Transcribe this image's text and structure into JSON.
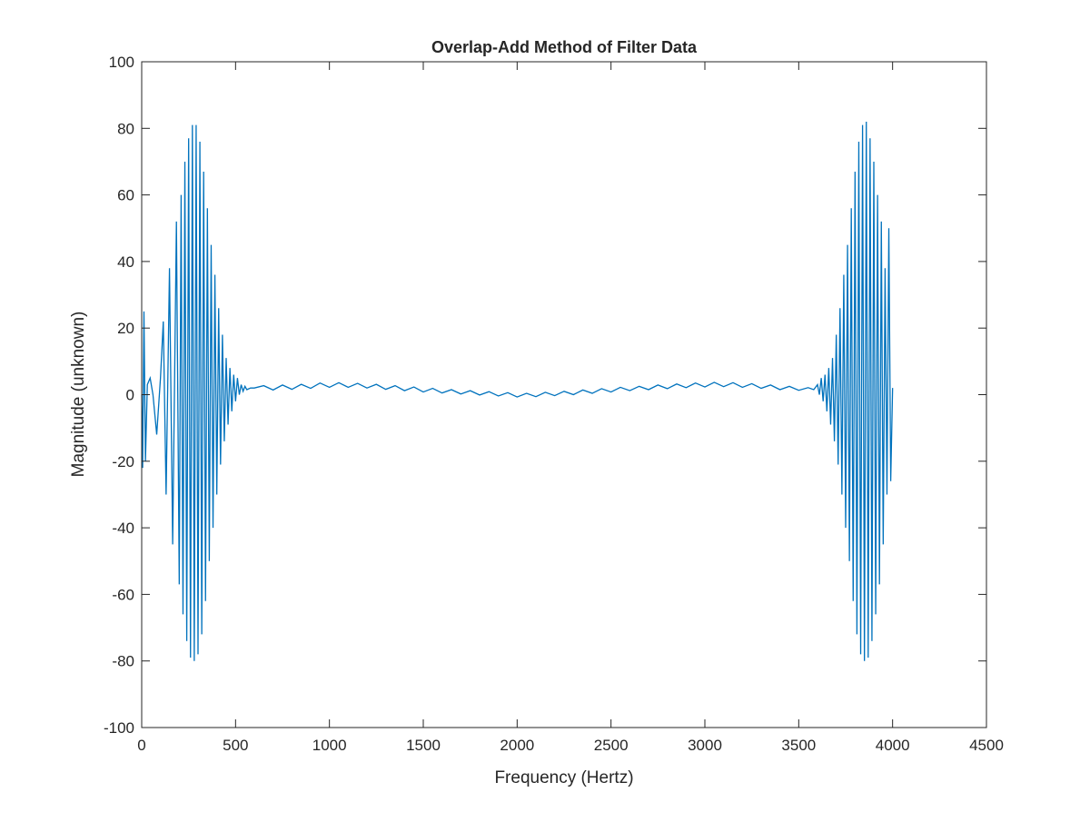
{
  "chart_data": {
    "type": "line",
    "title": "Overlap-Add Method of Filter Data",
    "x_label": "Frequency (Hertz)",
    "y_label": "Magnitude (unknown)",
    "xlim": [
      0,
      4500
    ],
    "xticks": [
      0,
      500,
      1000,
      1500,
      2000,
      2500,
      3000,
      3500,
      4000,
      4500
    ],
    "ylim": [
      -100,
      100
    ],
    "yticks": [
      -100,
      -80,
      -60,
      -40,
      -20,
      0,
      20,
      40,
      60,
      80,
      100
    ],
    "series": [
      {
        "color": "#0072bd",
        "x": [
          0,
          5,
          12,
          20,
          30,
          45,
          60,
          80,
          100,
          115,
          130,
          148,
          165,
          185,
          200,
          210,
          220,
          230,
          240,
          250,
          260,
          270,
          280,
          290,
          300,
          310,
          320,
          330,
          340,
          350,
          360,
          370,
          380,
          390,
          400,
          410,
          420,
          430,
          440,
          450,
          460,
          470,
          480,
          490,
          500,
          510,
          520,
          530,
          540,
          550,
          560,
          580,
          600,
          650,
          700,
          750,
          800,
          850,
          900,
          950,
          1000,
          1050,
          1100,
          1150,
          1200,
          1250,
          1300,
          1350,
          1400,
          1450,
          1500,
          1550,
          1600,
          1650,
          1700,
          1750,
          1800,
          1850,
          1900,
          1950,
          2000,
          2050,
          2100,
          2150,
          2200,
          2250,
          2300,
          2350,
          2400,
          2450,
          2500,
          2550,
          2600,
          2650,
          2700,
          2750,
          2800,
          2850,
          2900,
          2950,
          3000,
          3050,
          3100,
          3150,
          3200,
          3250,
          3300,
          3350,
          3400,
          3450,
          3500,
          3550,
          3580,
          3600,
          3610,
          3620,
          3630,
          3640,
          3650,
          3660,
          3670,
          3680,
          3690,
          3700,
          3710,
          3720,
          3730,
          3740,
          3750,
          3760,
          3770,
          3780,
          3790,
          3800,
          3810,
          3820,
          3830,
          3840,
          3850,
          3860,
          3870,
          3880,
          3890,
          3900,
          3910,
          3920,
          3930,
          3940,
          3950,
          3960,
          3970,
          3980,
          3990,
          4000
        ],
        "values": [
          0,
          -22,
          25,
          -20,
          3,
          5,
          0,
          -12,
          5,
          22,
          -30,
          38,
          -45,
          52,
          -57,
          60,
          -66,
          70,
          -74,
          77,
          -79,
          81,
          -80,
          81,
          -78,
          76,
          -72,
          67,
          -62,
          56,
          -50,
          45,
          -40,
          36,
          -30,
          26,
          -21,
          18,
          -14,
          11,
          -9,
          8,
          -5,
          6,
          -2,
          5,
          0,
          3,
          1,
          2.5,
          1.5,
          2,
          2,
          2.7,
          1.4,
          2.9,
          1.6,
          3.1,
          1.9,
          3.5,
          2.2,
          3.6,
          2.2,
          3.4,
          2.0,
          3.1,
          1.6,
          2.7,
          1.2,
          2.3,
          0.8,
          1.9,
          0.5,
          1.5,
          0.2,
          1.2,
          -0.1,
          0.9,
          -0.4,
          0.6,
          -0.7,
          0.4,
          -0.6,
          0.7,
          -0.3,
          1.0,
          0.0,
          1.4,
          0.4,
          1.8,
          0.8,
          2.2,
          1.2,
          2.5,
          1.5,
          2.9,
          1.8,
          3.2,
          2.1,
          3.5,
          2.3,
          3.7,
          2.4,
          3.6,
          2.2,
          3.3,
          1.9,
          2.9,
          1.5,
          2.5,
          1.3,
          2.1,
          1.5,
          3,
          0,
          5,
          -2,
          6,
          -5,
          8,
          -9,
          11,
          -14,
          18,
          -21,
          26,
          -30,
          36,
          -40,
          45,
          -50,
          56,
          -62,
          67,
          -72,
          76,
          -78,
          81,
          -80,
          82,
          -79,
          77,
          -74,
          70,
          -66,
          60,
          -57,
          52,
          -45,
          38,
          -30,
          50,
          -26,
          2
        ]
      }
    ]
  }
}
